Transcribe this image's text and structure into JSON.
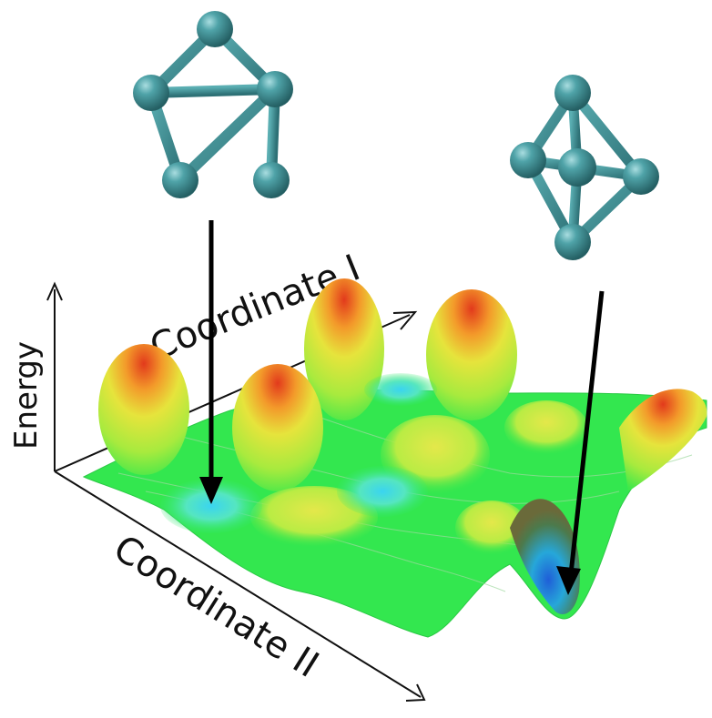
{
  "axes": {
    "energy_label": "Energy",
    "coord1_label": "Coordinate I",
    "coord2_label": "Coordinate II"
  },
  "colors": {
    "atom": "#3f8e93",
    "bond": "#3f8e93",
    "surface_low": "#22e84a",
    "surface_mid": "#d9ee4a",
    "surface_high": "#e8451e",
    "minimum": "#1a7fe0",
    "arrow": "#000000"
  },
  "clusters": [
    {
      "shape": "planar-pentagon",
      "atoms": 5
    },
    {
      "shape": "trigonal-bipyramid",
      "atoms": 5
    }
  ]
}
